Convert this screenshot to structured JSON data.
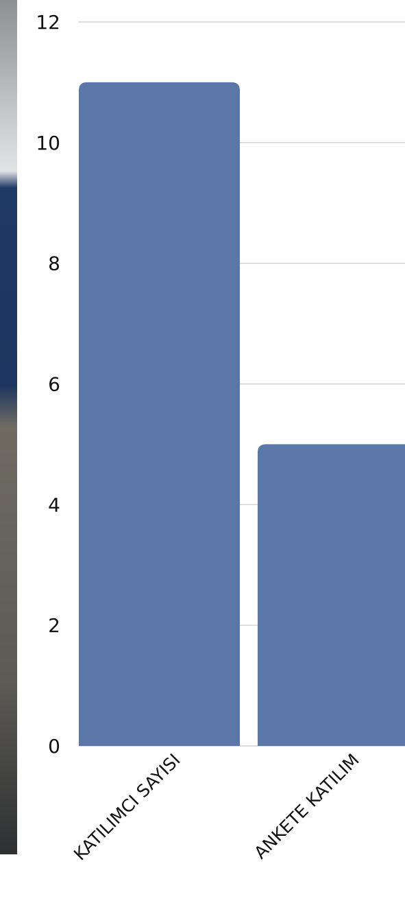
{
  "chart_data": {
    "type": "bar",
    "categories": [
      "KATILIMCI SAYISI",
      "ANKETE KATILIM"
    ],
    "values": [
      11,
      5
    ],
    "color": "#5a77a8",
    "ylim": [
      0,
      12
    ],
    "yticks": [
      0,
      2,
      4,
      6,
      8,
      10,
      12
    ],
    "grid": true
  }
}
